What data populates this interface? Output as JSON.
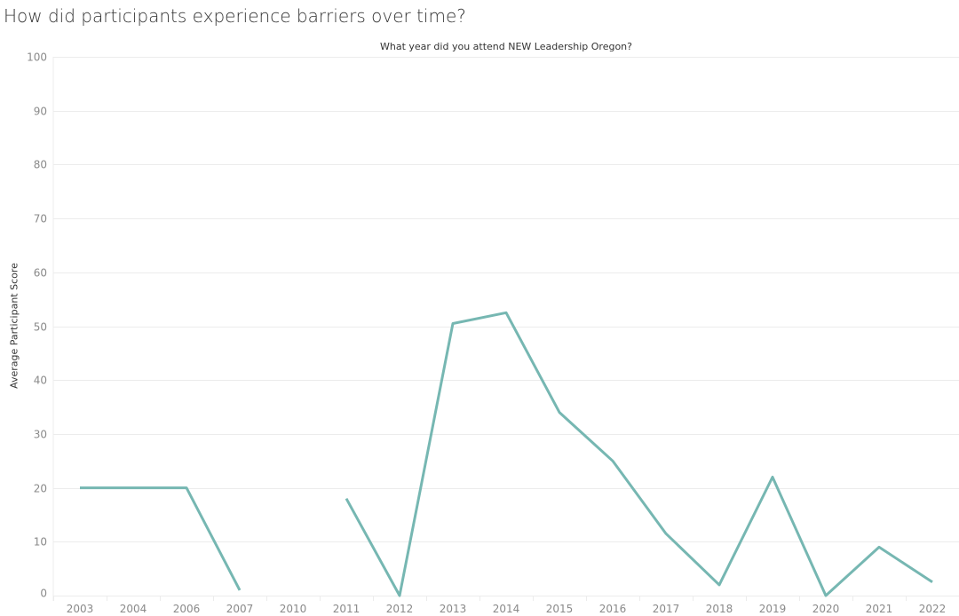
{
  "page": {
    "title": "How did participants experience barriers over time?"
  },
  "chart_data": {
    "type": "line",
    "title": "How did participants experience barriers over time?",
    "xlabel": "What year did you attend NEW Leadership Oregon?",
    "ylabel": "Average Participant Score",
    "ylim": [
      0,
      100
    ],
    "yticks": [
      0,
      10,
      20,
      30,
      40,
      50,
      60,
      70,
      80,
      90,
      100
    ],
    "grid": true,
    "legend": null,
    "categories": [
      "2003",
      "2004",
      "2006",
      "2007",
      "2010",
      "2011",
      "2012",
      "2013",
      "2014",
      "2015",
      "2016",
      "2017",
      "2018",
      "2019",
      "2020",
      "2021",
      "2022"
    ],
    "series": [
      {
        "name": "Average Participant Score",
        "color": "#76b7b2",
        "values": [
          20,
          20,
          20,
          1,
          null,
          18,
          0,
          50.5,
          52.5,
          34,
          25,
          11.5,
          2,
          22,
          0,
          9,
          2.5
        ]
      }
    ]
  },
  "colors": {
    "line": "#76b7b2",
    "grid": "#ececec",
    "tick_text": "#8a8a8a",
    "title_text": "#333333"
  }
}
